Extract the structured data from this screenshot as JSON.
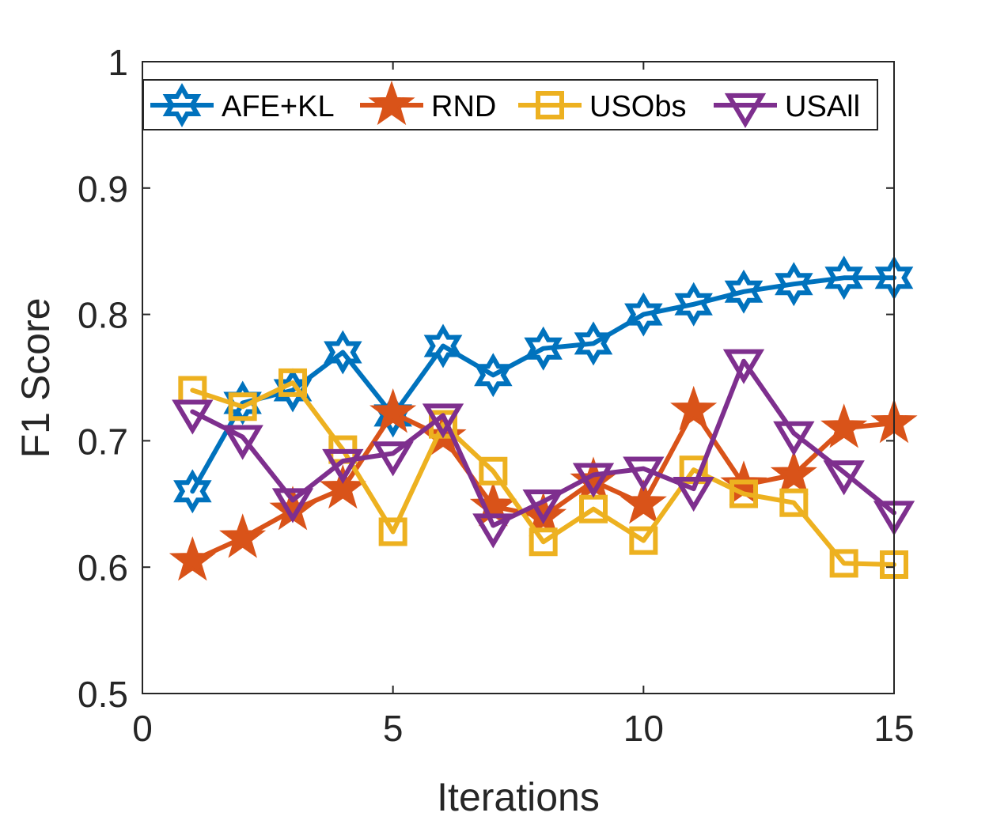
{
  "chart_data": {
    "type": "line",
    "xlabel": "Iterations",
    "ylabel": "F1 Score",
    "xlim": [
      0,
      15
    ],
    "ylim": [
      0.5,
      1
    ],
    "xticks": [
      "0",
      "5",
      "10",
      "15"
    ],
    "yticks": [
      "0.5",
      "0.6",
      "0.7",
      "0.8",
      "0.9",
      "1"
    ],
    "grid": false,
    "legend_position": "top",
    "x": [
      1,
      2,
      3,
      4,
      5,
      6,
      7,
      8,
      9,
      10,
      11,
      12,
      13,
      14,
      15
    ],
    "series": [
      {
        "name": "AFE+KL",
        "color": "#0072BD",
        "marker": "hexagram",
        "values": [
          0.66,
          0.73,
          0.74,
          0.77,
          0.72,
          0.775,
          0.752,
          0.773,
          0.777,
          0.8,
          0.808,
          0.818,
          0.824,
          0.829,
          0.829
        ]
      },
      {
        "name": "RND",
        "color": "#D95319",
        "marker": "pentagram",
        "values": [
          0.605,
          0.623,
          0.645,
          0.662,
          0.722,
          0.703,
          0.648,
          0.64,
          0.668,
          0.65,
          0.724,
          0.665,
          0.673,
          0.71,
          0.714
        ]
      },
      {
        "name": "USObs",
        "color": "#EDB120",
        "marker": "square",
        "values": [
          0.74,
          0.727,
          0.746,
          0.693,
          0.628,
          0.713,
          0.676,
          0.62,
          0.646,
          0.621,
          0.677,
          0.658,
          0.651,
          0.603,
          0.602
        ]
      },
      {
        "name": "USAll",
        "color": "#7E2F8E",
        "marker": "triangle-down",
        "values": [
          0.723,
          0.703,
          0.653,
          0.684,
          0.69,
          0.72,
          0.633,
          0.652,
          0.673,
          0.678,
          0.662,
          0.763,
          0.706,
          0.675,
          0.643
        ]
      }
    ]
  }
}
